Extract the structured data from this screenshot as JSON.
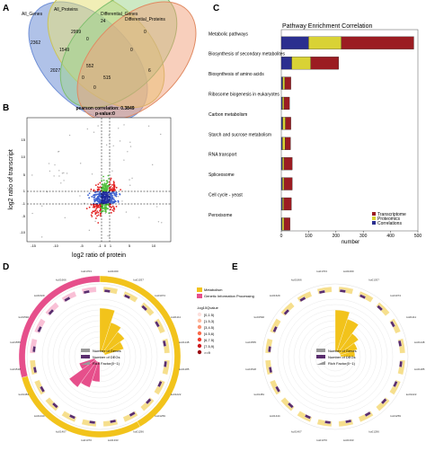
{
  "panels": {
    "a": "A",
    "b": "B",
    "c": "C",
    "d": "D",
    "e": "E"
  },
  "venn": {
    "sets": [
      "All_Genes",
      "All_Proteins",
      "Differential_Genes",
      "Differential_Proteins"
    ],
    "regions": [
      "2362",
      "2999",
      "24",
      "0",
      "1549",
      "0",
      "0",
      "2027",
      "552",
      "6",
      "0",
      "515",
      "0"
    ],
    "colors": [
      "#6f8fd6",
      "#e6e07a",
      "#9bd38a",
      "#f2a07a"
    ]
  },
  "scatter": {
    "title": "pearson correlation: 0.3849",
    "subtitle": "p-value:0",
    "xlabel": "log2 ratio of protein",
    "ylabel": "log2 ratio of transcript",
    "xticks": [
      "-15",
      "-10",
      "-5",
      "-1",
      "0",
      "1",
      "5",
      "10"
    ],
    "yticks": [
      "-10",
      "-5",
      "-1",
      "1",
      "5",
      "10",
      "15"
    ]
  },
  "chart_data": [
    {
      "type": "bar",
      "title": "Pathway Enrichment Correlation",
      "xlabel": "number",
      "ylabel": "",
      "xlim": [
        0,
        500
      ],
      "xticks": [
        "0",
        "100",
        "200",
        "300",
        "400",
        "500"
      ],
      "orientation": "horizontal",
      "stacked": true,
      "categories": [
        "Metabolic pathways",
        "Biosynthesis of secondary metabolites",
        "Biosynthesis of amino acids",
        "Ribosome biogenesis in eukaryotes",
        "Carbon metabolism",
        "Starch and sucrose metabolism",
        "RNA transport",
        "Spliceosome",
        "Cell cycle - yeast",
        "Peroxisome"
      ],
      "series": [
        {
          "name": "Correlations",
          "color": "#2b2f8f",
          "values": [
            100,
            38,
            5,
            4,
            5,
            4,
            4,
            4,
            4,
            3
          ]
        },
        {
          "name": "Proteomics",
          "color": "#d9d235",
          "values": [
            120,
            70,
            8,
            6,
            10,
            10,
            6,
            6,
            5,
            7
          ]
        },
        {
          "name": "Transcriptome",
          "color": "#9b1c22",
          "values": [
            265,
            102,
            22,
            20,
            20,
            20,
            30,
            30,
            28,
            22
          ]
        }
      ],
      "legend": "bottom-right"
    }
  ],
  "circos_d": {
    "legend_title": "-log10Qvalue",
    "categories": [
      "Metabolism",
      "Genetic Information Processing"
    ],
    "cat_colors": [
      "#f2c31b",
      "#e64f8b"
    ],
    "q_levels": [
      "[0,1.5)",
      "[1.5,3)",
      "[3,4.5)",
      "[4.5,6)",
      "[6,7.5)",
      "[7.5,9)",
      ">=9"
    ],
    "q_colors": [
      "#fde0dd",
      "#fcbba1",
      "#fc9272",
      "#fb6a4a",
      "#ef3b2c",
      "#cb181d",
      "#99000d"
    ],
    "key": [
      "Number of Genes",
      "Number of DEGs",
      "Rich Factor(0~1)"
    ]
  },
  "circos_e": {
    "key": [
      "Number of Genes",
      "Number of DEGs",
      "Rich Factor(0~1)"
    ]
  }
}
